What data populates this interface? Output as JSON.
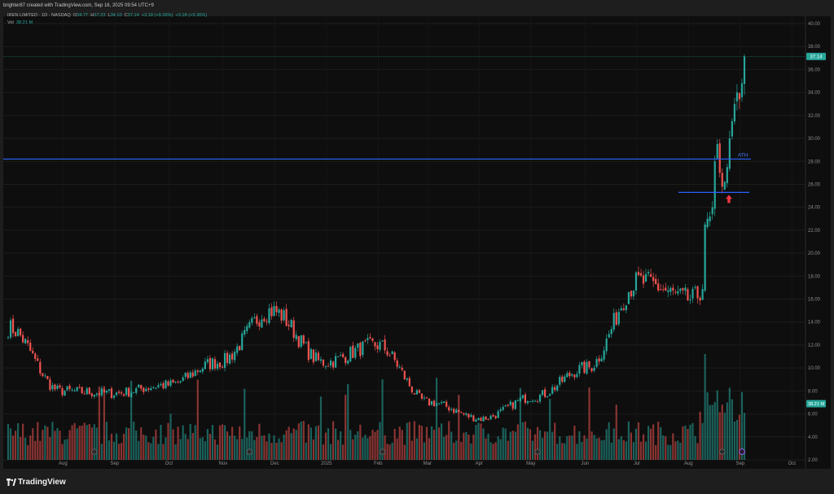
{
  "credit": "brighter87 created with TradingView.com, Sep 16, 2025 09:54 UTC+9",
  "legend": {
    "symbol": "IREN LIMITED · 1D · NASDAQ",
    "open_label": "O",
    "open": "34.77",
    "high_label": "H",
    "high": "37.23",
    "low_label": "L",
    "low": "34.10",
    "close_label": "C",
    "close": "37.14",
    "change": "+3.18 (+9.36%)",
    "change2": "+3.18 (+9.36%)",
    "vol_label": "Vol",
    "vol": "38.21 M"
  },
  "brand": "TradingView",
  "colors": {
    "up": "#26a69a",
    "down": "#ef5350",
    "line": "#2962ff",
    "background": "#0e0e0e",
    "arrow": "#f23645"
  },
  "chart_data": {
    "type": "candlestick",
    "y_ticks": [
      "40.00",
      "38.00",
      "36.00",
      "34.00",
      "32.00",
      "30.00",
      "28.00",
      "26.00",
      "24.00",
      "22.00",
      "20.00",
      "18.00",
      "16.00",
      "14.00",
      "12.00",
      "10.00",
      "8.00",
      "6.00",
      "4.00",
      "2.00"
    ],
    "ylim": [
      2,
      40
    ],
    "x_ticks": [
      "Aug",
      "Sep",
      "Oct",
      "Nov",
      "Dec",
      "2025",
      "Feb",
      "Mar",
      "Apr",
      "May",
      "Jun",
      "Jul",
      "Aug",
      "Sep",
      "Oct"
    ],
    "price_label": "37.14",
    "volume_label": "38.21 M",
    "annotation": "ATH",
    "ath_level": 28.2,
    "support_level": 25.3,
    "grid": true,
    "monthly_anchors": [
      {
        "m": "Jul",
        "p": 13.5
      },
      {
        "m": "Aug",
        "p": 8.0
      },
      {
        "m": "Sep",
        "p": 7.8
      },
      {
        "m": "Oct",
        "p": 8.5
      },
      {
        "m": "Nov",
        "p": 10.5
      },
      {
        "m": "Dec",
        "p": 15.0
      },
      {
        "m": "Jan",
        "p": 10.5
      },
      {
        "m": "Feb",
        "p": 12.0
      },
      {
        "m": "Mar",
        "p": 7.0
      },
      {
        "m": "Apr",
        "p": 5.6
      },
      {
        "m": "May",
        "p": 7.5
      },
      {
        "m": "Jun",
        "p": 10.0
      },
      {
        "m": "Jul",
        "p": 17.5
      },
      {
        "m": "Aug",
        "p": 16.0
      },
      {
        "m": "Sep",
        "p": 28.0
      }
    ],
    "last_close": 37.14
  }
}
